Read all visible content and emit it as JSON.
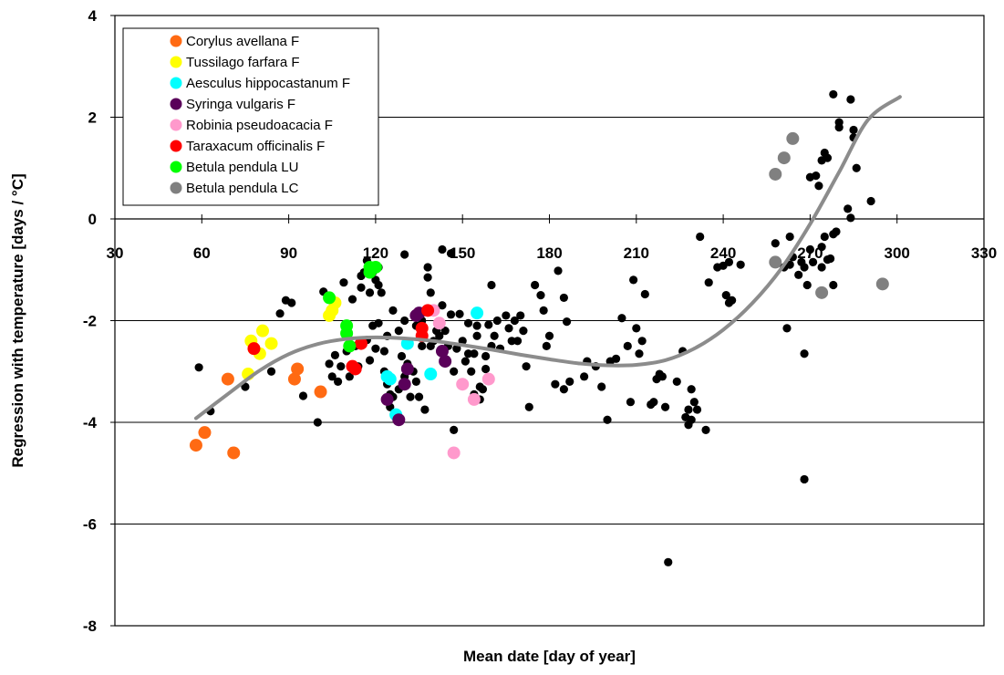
{
  "chart_data": {
    "type": "scatter",
    "xlabel": "Mean date [day of year]",
    "ylabel": "Regression with temperature [days / °C]",
    "xlim": [
      30,
      330
    ],
    "ylim": [
      -8,
      4
    ],
    "x_ticks": [
      30,
      60,
      90,
      120,
      150,
      180,
      210,
      240,
      270,
      300,
      330
    ],
    "y_ticks": [
      -8,
      -6,
      -4,
      -2,
      0,
      2,
      4
    ],
    "grid": "horizontal",
    "legend_position": "top-left",
    "trend_line": {
      "color": "#8c8c8c",
      "points": [
        [
          58,
          -3.92
        ],
        [
          70,
          -3.4
        ],
        [
          80,
          -2.98
        ],
        [
          90,
          -2.66
        ],
        [
          100,
          -2.46
        ],
        [
          110,
          -2.36
        ],
        [
          120,
          -2.33
        ],
        [
          130,
          -2.35
        ],
        [
          140,
          -2.4
        ],
        [
          150,
          -2.48
        ],
        [
          160,
          -2.57
        ],
        [
          170,
          -2.67
        ],
        [
          180,
          -2.76
        ],
        [
          190,
          -2.84
        ],
        [
          200,
          -2.88
        ],
        [
          210,
          -2.87
        ],
        [
          220,
          -2.78
        ],
        [
          230,
          -2.55
        ],
        [
          240,
          -2.18
        ],
        [
          250,
          -1.66
        ],
        [
          260,
          -0.98
        ],
        [
          270,
          -0.1
        ],
        [
          280,
          0.92
        ],
        [
          290,
          1.95
        ],
        [
          301,
          2.4
        ]
      ]
    },
    "series": [
      {
        "name": "",
        "color": "#000000",
        "size": "small",
        "points": [
          [
            59,
            -2.92
          ],
          [
            63,
            -3.78
          ],
          [
            75,
            -3.3
          ],
          [
            84,
            -3.0
          ],
          [
            87,
            -1.86
          ],
          [
            89,
            -1.6
          ],
          [
            91,
            -1.65
          ],
          [
            95,
            -3.48
          ],
          [
            100,
            -4.0
          ],
          [
            102,
            -1.43
          ],
          [
            104,
            -2.85
          ],
          [
            105,
            -3.1
          ],
          [
            106,
            -2.68
          ],
          [
            107,
            -3.2
          ],
          [
            108,
            -2.9
          ],
          [
            109,
            -1.25
          ],
          [
            110,
            -2.6
          ],
          [
            111,
            -3.1
          ],
          [
            112,
            -1.58
          ],
          [
            113,
            -2.5
          ],
          [
            114,
            -2.9
          ],
          [
            115,
            -1.12
          ],
          [
            115,
            -1.35
          ],
          [
            116,
            -1.05
          ],
          [
            117,
            -0.82
          ],
          [
            117,
            -2.38
          ],
          [
            118,
            -1.45
          ],
          [
            118,
            -2.78
          ],
          [
            119,
            -1.05
          ],
          [
            119,
            -2.1
          ],
          [
            120,
            -1.2
          ],
          [
            120,
            -2.55
          ],
          [
            121,
            -0.95
          ],
          [
            121,
            -1.3
          ],
          [
            121,
            -2.05
          ],
          [
            122,
            -1.45
          ],
          [
            123,
            -2.6
          ],
          [
            123,
            -3.0
          ],
          [
            124,
            -2.3
          ],
          [
            124,
            -3.25
          ],
          [
            125,
            -3.45
          ],
          [
            125,
            -3.7
          ],
          [
            126,
            -1.8
          ],
          [
            126,
            -3.5
          ],
          [
            127,
            -3.85
          ],
          [
            128,
            -2.2
          ],
          [
            128,
            -3.35
          ],
          [
            129,
            -2.7
          ],
          [
            130,
            -0.7
          ],
          [
            130,
            -2.0
          ],
          [
            130,
            -3.1
          ],
          [
            131,
            -2.85
          ],
          [
            132,
            -3.5
          ],
          [
            133,
            -3.0
          ],
          [
            134,
            -2.1
          ],
          [
            134,
            -3.2
          ],
          [
            135,
            -3.5
          ],
          [
            136,
            -2.5
          ],
          [
            136,
            -2.0
          ],
          [
            137,
            -3.75
          ],
          [
            137,
            -1.8
          ],
          [
            138,
            -0.95
          ],
          [
            138,
            -1.15
          ],
          [
            139,
            -1.45
          ],
          [
            139,
            -2.5
          ],
          [
            140,
            -2.4
          ],
          [
            141,
            -2.2
          ],
          [
            142,
            -2.3
          ],
          [
            143,
            -1.7
          ],
          [
            143,
            -0.6
          ],
          [
            144,
            -2.2
          ],
          [
            145,
            -2.5
          ],
          [
            146,
            -1.88
          ],
          [
            146,
            -0.68
          ],
          [
            147,
            -4.15
          ],
          [
            147,
            -3.0
          ],
          [
            148,
            -2.55
          ],
          [
            149,
            -1.87
          ],
          [
            150,
            -2.4
          ],
          [
            151,
            -2.8
          ],
          [
            152,
            -2.05
          ],
          [
            152,
            -2.65
          ],
          [
            153,
            -3.0
          ],
          [
            154,
            -3.45
          ],
          [
            154,
            -2.65
          ],
          [
            155,
            -2.3
          ],
          [
            155,
            -2.1
          ],
          [
            156,
            -3.3
          ],
          [
            156,
            -3.55
          ],
          [
            157,
            -3.35
          ],
          [
            158,
            -2.7
          ],
          [
            158,
            -2.95
          ],
          [
            159,
            -2.08
          ],
          [
            160,
            -1.3
          ],
          [
            160,
            -2.5
          ],
          [
            161,
            -2.3
          ],
          [
            162,
            -2.0
          ],
          [
            163,
            -2.55
          ],
          [
            165,
            -1.9
          ],
          [
            166,
            -2.15
          ],
          [
            167,
            -2.4
          ],
          [
            168,
            -2.0
          ],
          [
            169,
            -2.4
          ],
          [
            170,
            -1.9
          ],
          [
            171,
            -2.2
          ],
          [
            172,
            -2.9
          ],
          [
            173,
            -3.7
          ],
          [
            175,
            -1.3
          ],
          [
            177,
            -1.5
          ],
          [
            178,
            -1.8
          ],
          [
            179,
            -2.5
          ],
          [
            180,
            -2.3
          ],
          [
            182,
            -3.25
          ],
          [
            183,
            -1.02
          ],
          [
            185,
            -1.55
          ],
          [
            185,
            -3.35
          ],
          [
            186,
            -2.02
          ],
          [
            187,
            -3.2
          ],
          [
            192,
            -3.1
          ],
          [
            193,
            -2.8
          ],
          [
            196,
            -2.9
          ],
          [
            198,
            -3.3
          ],
          [
            200,
            -3.95
          ],
          [
            201,
            -2.8
          ],
          [
            203,
            -2.75
          ],
          [
            205,
            -1.95
          ],
          [
            207,
            -2.5
          ],
          [
            208,
            -3.6
          ],
          [
            209,
            -1.2
          ],
          [
            210,
            -2.15
          ],
          [
            211,
            -2.65
          ],
          [
            212,
            -2.4
          ],
          [
            213,
            -1.48
          ],
          [
            215,
            -3.65
          ],
          [
            216,
            -3.6
          ],
          [
            217,
            -3.15
          ],
          [
            218,
            -3.05
          ],
          [
            219,
            -3.1
          ],
          [
            220,
            -3.7
          ],
          [
            221,
            -6.75
          ],
          [
            224,
            -3.2
          ],
          [
            226,
            -2.6
          ],
          [
            227,
            -3.9
          ],
          [
            228,
            -3.75
          ],
          [
            228,
            -4.05
          ],
          [
            229,
            -3.35
          ],
          [
            229,
            -3.95
          ],
          [
            230,
            -3.6
          ],
          [
            231,
            -3.75
          ],
          [
            232,
            -0.35
          ],
          [
            234,
            -4.15
          ],
          [
            235,
            -1.25
          ],
          [
            238,
            -0.95
          ],
          [
            240,
            -0.92
          ],
          [
            241,
            -1.5
          ],
          [
            242,
            -0.85
          ],
          [
            242,
            -1.65
          ],
          [
            243,
            -1.6
          ],
          [
            246,
            -0.9
          ],
          [
            258,
            -0.48
          ],
          [
            261,
            -0.95
          ],
          [
            262,
            -2.15
          ],
          [
            263,
            -0.35
          ],
          [
            263,
            -0.9
          ],
          [
            264,
            -0.75
          ],
          [
            266,
            -1.1
          ],
          [
            267,
            -0.85
          ],
          [
            268,
            -0.95
          ],
          [
            268,
            -2.65
          ],
          [
            268,
            -5.12
          ],
          [
            269,
            -1.3
          ],
          [
            270,
            -0.6
          ],
          [
            271,
            -0.85
          ],
          [
            272,
            0.85
          ],
          [
            273,
            0.65
          ],
          [
            274,
            -0.55
          ],
          [
            274,
            -0.95
          ],
          [
            274,
            1.15
          ],
          [
            275,
            1.3
          ],
          [
            275,
            -0.35
          ],
          [
            276,
            -0.8
          ],
          [
            276,
            1.2
          ],
          [
            277,
            -0.78
          ],
          [
            278,
            -0.3
          ],
          [
            278,
            -1.3
          ],
          [
            278,
            2.45
          ],
          [
            279,
            -0.25
          ],
          [
            280,
            1.8
          ],
          [
            280,
            1.9
          ],
          [
            283,
            0.2
          ],
          [
            284,
            2.35
          ],
          [
            284,
            0.02
          ],
          [
            285,
            1.75
          ],
          [
            285,
            1.6
          ],
          [
            286,
            1.0
          ],
          [
            291,
            0.35
          ],
          [
            270,
            0.82
          ]
        ]
      },
      {
        "name": "Corylus avellana F",
        "color": "#ff6a13",
        "size": "large",
        "points": [
          [
            58,
            -4.45
          ],
          [
            61,
            -4.2
          ],
          [
            69,
            -3.15
          ],
          [
            71,
            -4.6
          ],
          [
            92,
            -3.15
          ],
          [
            93,
            -2.95
          ],
          [
            101,
            -3.4
          ]
        ]
      },
      {
        "name": "Tussilago farfara F",
        "color": "#ffff00",
        "size": "large",
        "points": [
          [
            76,
            -3.05
          ],
          [
            77,
            -2.4
          ],
          [
            78,
            -2.55
          ],
          [
            80,
            -2.65
          ],
          [
            81,
            -2.2
          ],
          [
            84,
            -2.45
          ],
          [
            104,
            -1.9
          ],
          [
            105,
            -1.8
          ],
          [
            106,
            -1.65
          ]
        ]
      },
      {
        "name": "Aesculus hippocastanum F",
        "color": "#00ffff",
        "size": "large",
        "points": [
          [
            124,
            -3.1
          ],
          [
            125,
            -3.15
          ],
          [
            127,
            -3.85
          ],
          [
            131,
            -2.45
          ],
          [
            139,
            -3.05
          ],
          [
            155,
            -1.85
          ]
        ]
      },
      {
        "name": "Syringa vulgaris F",
        "color": "#5a005a",
        "size": "large",
        "points": [
          [
            124,
            -3.55
          ],
          [
            128,
            -3.95
          ],
          [
            130,
            -3.25
          ],
          [
            131,
            -2.95
          ],
          [
            134,
            -1.9
          ],
          [
            135,
            -1.85
          ],
          [
            143,
            -2.6
          ],
          [
            144,
            -2.8
          ]
        ]
      },
      {
        "name": "Robinia pseudoacacia F",
        "color": "#ff99cc",
        "size": "large",
        "points": [
          [
            140,
            -1.8
          ],
          [
            142,
            -2.05
          ],
          [
            147,
            -4.6
          ],
          [
            150,
            -3.25
          ],
          [
            154,
            -3.55
          ],
          [
            159,
            -3.15
          ]
        ]
      },
      {
        "name": "Taraxacum officinalis F",
        "color": "#ff0000",
        "size": "large",
        "points": [
          [
            78,
            -2.55
          ],
          [
            112,
            -2.9
          ],
          [
            113,
            -2.95
          ],
          [
            115,
            -2.45
          ],
          [
            136,
            -2.3
          ],
          [
            136,
            -2.15
          ],
          [
            138,
            -1.8
          ]
        ]
      },
      {
        "name": "Betula pendula LU",
        "color": "#00ff00",
        "size": "large",
        "points": [
          [
            104,
            -1.55
          ],
          [
            110,
            -2.1
          ],
          [
            110,
            -2.25
          ],
          [
            111,
            -2.5
          ],
          [
            118,
            -1.05
          ],
          [
            118,
            -0.95
          ],
          [
            120,
            -0.95
          ]
        ]
      },
      {
        "name": "Betula pendula LC",
        "color": "#808080",
        "size": "large",
        "points": [
          [
            258,
            -0.85
          ],
          [
            258,
            0.88
          ],
          [
            261,
            1.2
          ],
          [
            264,
            1.58
          ],
          [
            274,
            -1.45
          ],
          [
            295,
            -1.28
          ]
        ]
      }
    ]
  }
}
